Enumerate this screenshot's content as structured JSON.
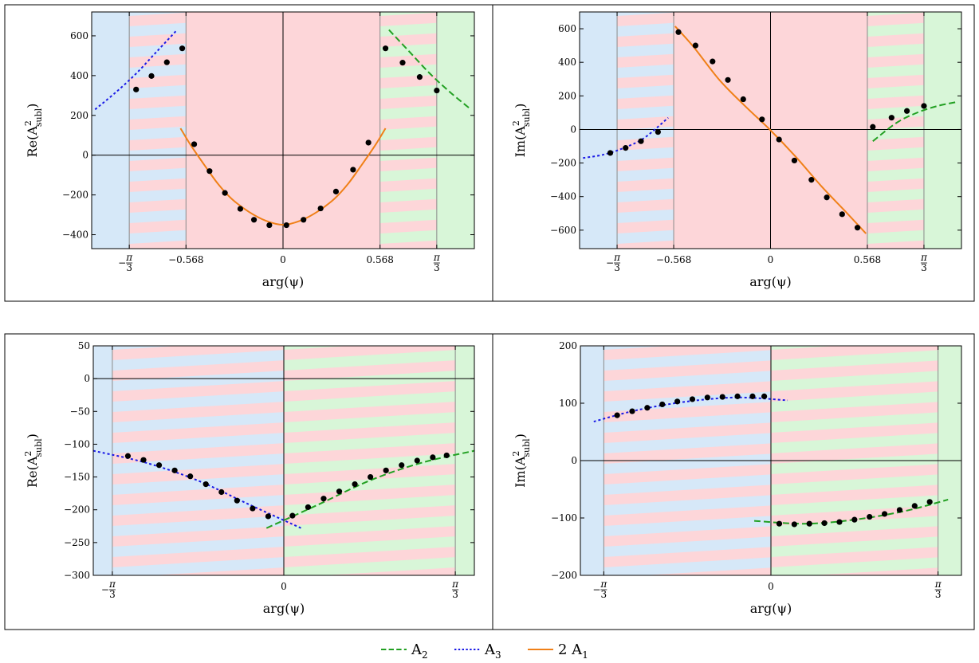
{
  "legend": [
    {
      "name": "A",
      "sub": "2",
      "color": "#22a022",
      "dash": "8,4"
    },
    {
      "name": "A",
      "sub": "3",
      "color": "#1a1ae6",
      "dash": "3,3"
    },
    {
      "name": "2 A",
      "sub": "1",
      "color": "#f08018",
      "dash": ""
    }
  ],
  "colors": {
    "blue_region": "#d6e8f8",
    "red_region": "#fdd6d9",
    "green_region": "#d8f6d8",
    "marker": "#000000"
  },
  "chart_data": [
    {
      "type": "line",
      "ylabel": "Re(A",
      "ylabel_sup": "2",
      "ylabel_sub": "subl",
      "xlabel": "arg(ψ)",
      "xlim": [
        -1.12,
        1.12
      ],
      "ylim": [
        -470,
        720
      ],
      "region_edges": [
        -0.9,
        -0.568,
        0.568,
        0.9
      ],
      "xticks": [
        {
          "v": -0.9,
          "num": "π",
          "den": "3",
          "neg": true
        },
        {
          "v": -0.568,
          "label": "−0.568"
        },
        {
          "v": 0,
          "label": "0"
        },
        {
          "v": 0.568,
          "label": "0.568"
        },
        {
          "v": 0.9,
          "num": "π",
          "den": "3",
          "neg": false
        }
      ],
      "yticks": [
        {
          "v": -400,
          "label": "−400"
        },
        {
          "v": -200,
          "label": "−200"
        },
        {
          "v": 0,
          "label": "0"
        },
        {
          "v": 200,
          "label": "200"
        },
        {
          "v": 400,
          "label": "400"
        },
        {
          "v": 600,
          "label": "600"
        }
      ],
      "series": [
        {
          "key": "A3",
          "x": [
            -1.1,
            -0.98,
            -0.86,
            -0.74,
            -0.62
          ],
          "y": [
            230,
            315,
            410,
            520,
            630
          ]
        },
        {
          "key": "A2",
          "x": [
            0.62,
            0.74,
            0.86,
            0.98,
            1.1
          ],
          "y": [
            630,
            520,
            410,
            315,
            230
          ]
        },
        {
          "key": "A1",
          "x": [
            -0.6,
            -0.54,
            -0.46,
            -0.38,
            -0.3,
            -0.2,
            -0.1,
            0,
            0.1,
            0.2,
            0.3,
            0.38,
            0.46,
            0.54,
            0.6
          ],
          "y": [
            135,
            50,
            -50,
            -145,
            -220,
            -285,
            -330,
            -350,
            -330,
            -285,
            -220,
            -145,
            -50,
            50,
            135
          ]
        }
      ],
      "points": {
        "x": [
          -0.86,
          -0.77,
          -0.68,
          -0.59,
          -0.52,
          -0.43,
          -0.34,
          -0.25,
          -0.17,
          -0.08,
          0.02,
          0.12,
          0.22,
          0.31,
          0.41,
          0.5,
          0.6,
          0.7,
          0.8,
          0.9
        ],
        "y": [
          330,
          398,
          467,
          537,
          55,
          -80,
          -190,
          -270,
          -325,
          -352,
          -352,
          -325,
          -268,
          -183,
          -73,
          63,
          537,
          465,
          393,
          325
        ]
      }
    },
    {
      "type": "line",
      "ylabel": "Im(A",
      "ylabel_sup": "2",
      "ylabel_sub": "subl",
      "xlabel": "arg(ψ)",
      "xlim": [
        -1.12,
        1.12
      ],
      "ylim": [
        -710,
        700
      ],
      "region_edges": [
        -0.9,
        -0.568,
        0.568,
        0.9
      ],
      "xticks": [
        {
          "v": -0.9,
          "num": "π",
          "den": "3",
          "neg": true
        },
        {
          "v": -0.568,
          "label": "−0.568"
        },
        {
          "v": 0,
          "label": "0"
        },
        {
          "v": 0.568,
          "label": "0.568"
        },
        {
          "v": 0.9,
          "num": "π",
          "den": "3",
          "neg": false
        }
      ],
      "yticks": [
        {
          "v": -600,
          "label": "−600"
        },
        {
          "v": -400,
          "label": "−400"
        },
        {
          "v": -200,
          "label": "−200"
        },
        {
          "v": 0,
          "label": "0"
        },
        {
          "v": 200,
          "label": "200"
        },
        {
          "v": 400,
          "label": "400"
        },
        {
          "v": 600,
          "label": "600"
        }
      ],
      "series": [
        {
          "key": "A3",
          "x": [
            -1.1,
            -0.98,
            -0.86,
            -0.74,
            -0.6
          ],
          "y": [
            -170,
            -150,
            -110,
            -50,
            70
          ]
        },
        {
          "key": "A2",
          "x": [
            0.6,
            0.74,
            0.86,
            0.98,
            1.1
          ],
          "y": [
            -70,
            40,
            100,
            140,
            165
          ]
        },
        {
          "key": "A1",
          "x": [
            -0.56,
            -0.45,
            -0.3,
            -0.15,
            0,
            0.15,
            0.3,
            0.45,
            0.56
          ],
          "y": [
            615,
            490,
            295,
            140,
            -5,
            -165,
            -340,
            -500,
            -620
          ]
        }
      ],
      "points": {
        "x": [
          -0.94,
          -0.85,
          -0.76,
          -0.66,
          -0.54,
          -0.44,
          -0.34,
          -0.25,
          -0.16,
          -0.05,
          0.05,
          0.14,
          0.24,
          0.33,
          0.42,
          0.51,
          0.6,
          0.71,
          0.8,
          0.9
        ],
        "y": [
          -140,
          -110,
          -70,
          -15,
          580,
          500,
          405,
          295,
          180,
          60,
          -60,
          -185,
          -300,
          -405,
          -505,
          -585,
          15,
          70,
          110,
          140
        ]
      }
    },
    {
      "type": "line",
      "ylabel": "Re(A",
      "ylabel_sup": "2",
      "ylabel_sub": "subl",
      "xlabel": "arg(ψ)",
      "xlim": [
        -1.1,
        1.1
      ],
      "ylim": [
        -300,
        50
      ],
      "region_edges": [
        -0.99,
        0,
        0.99
      ],
      "xticks": [
        {
          "v": -0.99,
          "num": "π",
          "den": "3",
          "neg": true
        },
        {
          "v": 0,
          "label": "0"
        },
        {
          "v": 0.99,
          "num": "π",
          "den": "3",
          "neg": false
        }
      ],
      "yticks": [
        {
          "v": -300,
          "label": "−300"
        },
        {
          "v": -250,
          "label": "−250"
        },
        {
          "v": -200,
          "label": "−200"
        },
        {
          "v": -150,
          "label": "−150"
        },
        {
          "v": -100,
          "label": "−100"
        },
        {
          "v": -50,
          "label": "−50"
        },
        {
          "v": 0,
          "label": "0"
        },
        {
          "v": 50,
          "label": "50"
        }
      ],
      "series": [
        {
          "key": "A3",
          "x": [
            -1.1,
            -0.8,
            -0.5,
            -0.2,
            0.1
          ],
          "y": [
            -110,
            -128,
            -155,
            -192,
            -228
          ]
        },
        {
          "key": "A2",
          "x": [
            -0.1,
            0.2,
            0.5,
            0.8,
            1.1
          ],
          "y": [
            -228,
            -192,
            -155,
            -128,
            -110
          ]
        }
      ],
      "points": {
        "x": [
          -0.9,
          -0.81,
          -0.72,
          -0.63,
          -0.54,
          -0.45,
          -0.36,
          -0.27,
          -0.18,
          -0.09,
          0.05,
          0.14,
          0.23,
          0.32,
          0.41,
          0.5,
          0.59,
          0.68,
          0.77,
          0.86,
          0.94
        ],
        "y": [
          -118,
          -124,
          -132,
          -140,
          -149,
          -161,
          -173,
          -186,
          -198,
          -210,
          -209,
          -196,
          -183,
          -172,
          -161,
          -150,
          -140,
          -132,
          -125,
          -120,
          -117
        ]
      }
    },
    {
      "type": "line",
      "ylabel": "Im(A",
      "ylabel_sup": "2",
      "ylabel_sub": "subl",
      "xlabel": "arg(ψ)",
      "xlim": [
        -1.14,
        1.14
      ],
      "ylim": [
        -200,
        200
      ],
      "region_edges": [
        -1.0,
        0,
        1.0
      ],
      "xticks": [
        {
          "v": -1.0,
          "num": "π",
          "den": "3",
          "neg": true
        },
        {
          "v": 0,
          "label": "0"
        },
        {
          "v": 1.0,
          "num": "π",
          "den": "3",
          "neg": false
        }
      ],
      "yticks": [
        {
          "v": -200,
          "label": "−200"
        },
        {
          "v": -100,
          "label": "−100"
        },
        {
          "v": 0,
          "label": "0"
        },
        {
          "v": 100,
          "label": "100"
        },
        {
          "v": 200,
          "label": "200"
        }
      ],
      "series": [
        {
          "key": "A3",
          "x": [
            -1.06,
            -0.8,
            -0.5,
            -0.2,
            0.1
          ],
          "y": [
            68,
            88,
            103,
            110,
            105
          ]
        },
        {
          "key": "A2",
          "x": [
            -0.1,
            0.2,
            0.5,
            0.8,
            1.06
          ],
          "y": [
            -105,
            -110,
            -103,
            -88,
            -68
          ]
        }
      ],
      "points": {
        "x": [
          -0.92,
          -0.83,
          -0.74,
          -0.65,
          -0.56,
          -0.47,
          -0.38,
          -0.29,
          -0.2,
          -0.11,
          -0.04,
          0.05,
          0.14,
          0.23,
          0.32,
          0.41,
          0.5,
          0.59,
          0.68,
          0.77,
          0.86,
          0.95
        ],
        "y": [
          79,
          86,
          92,
          98,
          103,
          107,
          110,
          111,
          112,
          112,
          112,
          -110,
          -111,
          -110,
          -109,
          -107,
          -103,
          -98,
          -93,
          -86,
          -79,
          -72
        ]
      }
    }
  ]
}
